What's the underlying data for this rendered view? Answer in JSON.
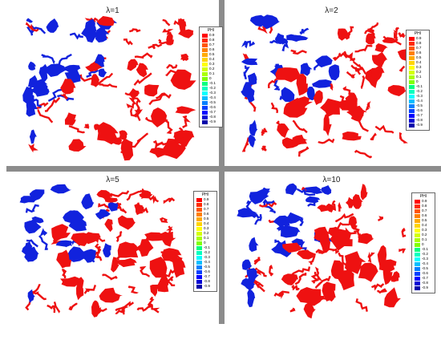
{
  "panels": [
    {
      "title": "λ=1"
    },
    {
      "title": "λ=2"
    },
    {
      "title": "λ=5"
    },
    {
      "title": "λ=10"
    }
  ],
  "colorbar": {
    "title": "PHI",
    "labels": [
      "0.9",
      "0.8",
      "0.7",
      "0.6",
      "0.5",
      "0.4",
      "0.3",
      "0.2",
      "0.1",
      "0",
      "-0.1",
      "-0.2",
      "-0.3",
      "-0.4",
      "-0.5",
      "-0.6",
      "-0.7",
      "-0.8",
      "-0.9"
    ],
    "colors": [
      "#ff0000",
      "#ff2a00",
      "#ff5500",
      "#ff8000",
      "#ffaa00",
      "#ffd400",
      "#ffff00",
      "#d4ff00",
      "#aaff00",
      "#80ff00",
      "#00ff80",
      "#00ffbf",
      "#00ffff",
      "#00bfff",
      "#0080ff",
      "#0040ff",
      "#0000ff",
      "#0000d4",
      "#0000aa"
    ]
  },
  "colors": {
    "phase_positive": "#ee1111",
    "phase_negative": "#1122dd",
    "divider": "#8c8c8c"
  }
}
